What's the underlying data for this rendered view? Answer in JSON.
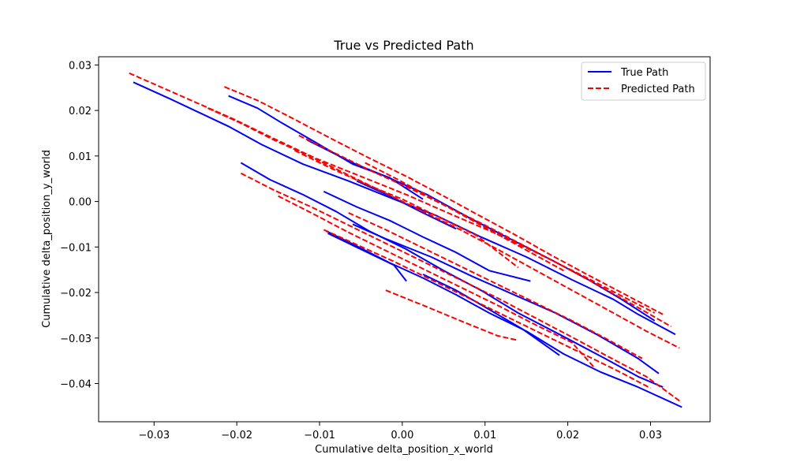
{
  "chart_data": {
    "type": "line",
    "title": "True vs Predicted Path",
    "xlabel": "Cumulative delta_position_x_world",
    "ylabel": "Cumulative delta_position_y_world",
    "xlim": [
      -0.0367,
      0.0372
    ],
    "ylim": [
      -0.0484,
      0.0318
    ],
    "xticks": [
      -0.03,
      -0.02,
      -0.01,
      0.0,
      0.01,
      0.02,
      0.03
    ],
    "xtick_labels": [
      "−0.03",
      "−0.02",
      "−0.01",
      "0.00",
      "0.01",
      "0.02",
      "0.03"
    ],
    "yticks": [
      0.03,
      0.02,
      0.01,
      0.0,
      -0.01,
      -0.02,
      -0.03,
      -0.04
    ],
    "ytick_labels": [
      "0.03",
      "0.02",
      "0.01",
      "0.00",
      "−0.01",
      "−0.02",
      "−0.03",
      "−0.04"
    ],
    "grid": false,
    "legend_position": "top-right",
    "series": [
      {
        "name": "True Path",
        "color": "#0000ff",
        "dash": "solid",
        "segments": [
          [
            [
              -0.0325,
              0.0262
            ],
            [
              -0.028,
              0.0225
            ],
            [
              -0.021,
              0.0165
            ],
            [
              -0.017,
              0.0125
            ],
            [
              -0.012,
              0.0082
            ],
            [
              -0.0065,
              0.0045
            ],
            [
              -0.001,
              0.0005
            ],
            [
              0.004,
              -0.003
            ],
            [
              0.0095,
              -0.0078
            ],
            [
              0.015,
              -0.0122
            ],
            [
              0.0205,
              -0.0172
            ],
            [
              0.0255,
              -0.0215
            ],
            [
              0.0285,
              -0.0248
            ],
            [
              0.033,
              -0.0292
            ]
          ],
          [
            [
              -0.021,
              0.0232
            ],
            [
              -0.0175,
              0.0205
            ],
            [
              -0.0145,
              0.0172
            ],
            [
              -0.0105,
              0.013
            ],
            [
              -0.006,
              0.0082
            ],
            [
              -0.0015,
              0.0052
            ],
            [
              0.0025,
              0.0005
            ]
          ],
          [
            [
              -0.0195,
              0.0085
            ],
            [
              -0.016,
              0.0048
            ],
            [
              -0.012,
              0.0015
            ],
            [
              -0.008,
              -0.0022
            ],
            [
              -0.004,
              -0.0065
            ],
            [
              0.0005,
              -0.0105
            ],
            [
              0.005,
              -0.0152
            ],
            [
              0.0095,
              -0.0195
            ],
            [
              0.014,
              -0.0245
            ],
            [
              0.019,
              -0.0292
            ],
            [
              0.0245,
              -0.0345
            ],
            [
              0.0285,
              -0.0385
            ],
            [
              0.0315,
              -0.0408
            ]
          ],
          [
            [
              -0.0095,
              0.0022
            ],
            [
              -0.0055,
              -0.0012
            ],
            [
              -0.0015,
              -0.0042
            ],
            [
              0.0025,
              -0.0078
            ],
            [
              0.0065,
              -0.0112
            ],
            [
              0.0105,
              -0.0152
            ],
            [
              0.0155,
              -0.0175
            ]
          ],
          [
            [
              -0.0092,
              -0.0065
            ],
            [
              -0.0055,
              -0.0098
            ],
            [
              -0.0015,
              -0.0135
            ],
            [
              0.0025,
              -0.0168
            ],
            [
              0.0065,
              -0.0205
            ],
            [
              0.0105,
              -0.0245
            ],
            [
              0.015,
              -0.0285
            ],
            [
              0.0195,
              -0.0335
            ],
            [
              0.024,
              -0.0375
            ],
            [
              0.0285,
              -0.0408
            ],
            [
              0.0338,
              -0.0452
            ]
          ],
          [
            [
              -0.0115,
              0.0135
            ],
            [
              -0.006,
              0.0085
            ],
            [
              -0.002,
              0.0055
            ],
            [
              0.003,
              0.0015
            ],
            [
              0.008,
              -0.0035
            ],
            [
              0.013,
              -0.0082
            ],
            [
              0.018,
              -0.0128
            ],
            [
              0.0225,
              -0.0172
            ],
            [
              0.0265,
              -0.0215
            ],
            [
              0.0305,
              -0.0262
            ]
          ],
          [
            [
              -0.006,
              -0.005
            ],
            [
              -0.002,
              -0.0082
            ],
            [
              0.0035,
              -0.0122
            ],
            [
              0.0085,
              -0.0165
            ],
            [
              0.0135,
              -0.0205
            ],
            [
              0.0185,
              -0.0245
            ],
            [
              0.0235,
              -0.0292
            ],
            [
              0.0285,
              -0.0345
            ],
            [
              0.031,
              -0.0378
            ]
          ],
          [
            [
              -0.009,
              -0.007
            ],
            [
              -0.005,
              -0.0105
            ],
            [
              -0.001,
              -0.014
            ],
            [
              0.0005,
              -0.0175
            ]
          ],
          [
            [
              0.0025,
              -0.016
            ],
            [
              0.0065,
              -0.0195
            ],
            [
              0.01,
              -0.0232
            ],
            [
              0.0145,
              -0.028
            ],
            [
              0.019,
              -0.0338
            ]
          ],
          [
            [
              -0.0055,
              0.0045
            ],
            [
              -0.0015,
              0.0012
            ],
            [
              0.0025,
              -0.0025
            ],
            [
              0.0065,
              -0.006
            ]
          ]
        ]
      },
      {
        "name": "Predicted Path",
        "color": "#ff0000",
        "dash": "dashed",
        "segments": [
          [
            [
              -0.033,
              0.0282
            ],
            [
              -0.0275,
              0.0238
            ],
            [
              -0.0205,
              0.0182
            ],
            [
              -0.0155,
              0.0138
            ],
            [
              -0.0105,
              0.0095
            ],
            [
              -0.005,
              0.0055
            ],
            [
              0.0005,
              0.0015
            ],
            [
              0.0055,
              -0.0025
            ],
            [
              0.011,
              -0.0068
            ],
            [
              0.0165,
              -0.0115
            ],
            [
              0.022,
              -0.0165
            ],
            [
              0.027,
              -0.0212
            ],
            [
              0.0305,
              -0.0245
            ]
          ],
          [
            [
              -0.0215,
              0.0252
            ],
            [
              -0.0175,
              0.0222
            ],
            [
              -0.0135,
              0.0185
            ],
            [
              -0.009,
              0.0142
            ],
            [
              -0.0045,
              0.01
            ],
            [
              0.0005,
              0.0055
            ],
            [
              0.005,
              0.0012
            ],
            [
              0.009,
              -0.0028
            ],
            [
              0.0135,
              -0.0072
            ],
            [
              0.018,
              -0.0118
            ],
            [
              0.0225,
              -0.0162
            ],
            [
              0.027,
              -0.0205
            ],
            [
              0.0315,
              -0.0248
            ]
          ],
          [
            [
              -0.0235,
              0.0205
            ],
            [
              -0.0195,
              0.0172
            ],
            [
              -0.0155,
              0.0135
            ],
            [
              -0.011,
              0.0098
            ],
            [
              -0.0065,
              0.0058
            ],
            [
              -0.002,
              0.0018
            ],
            [
              0.0025,
              -0.0022
            ],
            [
              0.007,
              -0.0062
            ],
            [
              0.0115,
              -0.0105
            ],
            [
              0.016,
              -0.015
            ],
            [
              0.0205,
              -0.0195
            ],
            [
              0.025,
              -0.024
            ],
            [
              0.0295,
              -0.0285
            ],
            [
              0.0335,
              -0.0322
            ]
          ],
          [
            [
              -0.0195,
              0.0062
            ],
            [
              -0.0155,
              0.0025
            ],
            [
              -0.011,
              -0.0012
            ],
            [
              -0.0065,
              -0.0052
            ],
            [
              -0.002,
              -0.0092
            ],
            [
              0.0025,
              -0.0132
            ],
            [
              0.007,
              -0.0172
            ],
            [
              0.0115,
              -0.0212
            ],
            [
              0.016,
              -0.0255
            ],
            [
              0.0205,
              -0.0298
            ],
            [
              0.025,
              -0.0342
            ],
            [
              0.0295,
              -0.0385
            ],
            [
              0.0335,
              -0.0438
            ]
          ],
          [
            [
              -0.015,
              0.0012
            ],
            [
              -0.011,
              -0.0025
            ],
            [
              -0.0065,
              -0.0068
            ],
            [
              -0.002,
              -0.0108
            ],
            [
              0.0025,
              -0.0148
            ],
            [
              0.007,
              -0.0188
            ],
            [
              0.0115,
              -0.0228
            ],
            [
              0.016,
              -0.027
            ],
            [
              0.0205,
              -0.031
            ],
            [
              0.0232,
              -0.0365
            ]
          ],
          [
            [
              -0.0095,
              -0.0062
            ],
            [
              -0.0055,
              -0.0095
            ],
            [
              -0.001,
              -0.0132
            ],
            [
              0.0035,
              -0.0172
            ],
            [
              0.008,
              -0.0212
            ],
            [
              0.0125,
              -0.0252
            ],
            [
              0.017,
              -0.0292
            ],
            [
              0.0215,
              -0.0332
            ],
            [
              0.026,
              -0.0372
            ],
            [
              0.03,
              -0.041
            ]
          ],
          [
            [
              -0.0125,
              0.0145
            ],
            [
              -0.008,
              0.0105
            ],
            [
              -0.0035,
              0.0065
            ],
            [
              0.001,
              0.0028
            ],
            [
              0.0055,
              -0.0012
            ],
            [
              0.01,
              -0.0052
            ],
            [
              0.0145,
              -0.0095
            ],
            [
              0.019,
              -0.0138
            ],
            [
              0.0235,
              -0.0182
            ],
            [
              0.028,
              -0.0228
            ],
            [
              0.0325,
              -0.0275
            ]
          ],
          [
            [
              -0.0065,
              -0.0025
            ],
            [
              -0.002,
              -0.0062
            ],
            [
              0.0025,
              -0.0102
            ],
            [
              0.007,
              -0.0142
            ],
            [
              0.0115,
              -0.0182
            ],
            [
              0.016,
              -0.0222
            ],
            [
              0.0205,
              -0.0262
            ],
            [
              0.025,
              -0.0305
            ],
            [
              0.029,
              -0.0345
            ]
          ],
          [
            [
              -0.0045,
              0.0085
            ],
            [
              -0.0005,
              0.0048
            ],
            [
              0.0035,
              0.0008
            ],
            [
              0.0075,
              -0.0032
            ],
            [
              0.0115,
              -0.0072
            ],
            [
              0.0155,
              -0.0112
            ],
            [
              0.0195,
              -0.0152
            ]
          ],
          [
            [
              -0.002,
              -0.0195
            ],
            [
              0.0025,
              -0.0228
            ],
            [
              0.007,
              -0.0262
            ],
            [
              0.0115,
              -0.0295
            ],
            [
              0.014,
              -0.0305
            ]
          ],
          [
            [
              -0.013,
              0.0112
            ],
            [
              -0.0085,
              0.0072
            ],
            [
              -0.004,
              0.0035
            ],
            [
              0.0,
              0.0005
            ],
            [
              0.0045,
              -0.0035
            ],
            [
              0.009,
              -0.0075
            ],
            [
              0.014,
              -0.0145
            ]
          ]
        ]
      }
    ]
  }
}
